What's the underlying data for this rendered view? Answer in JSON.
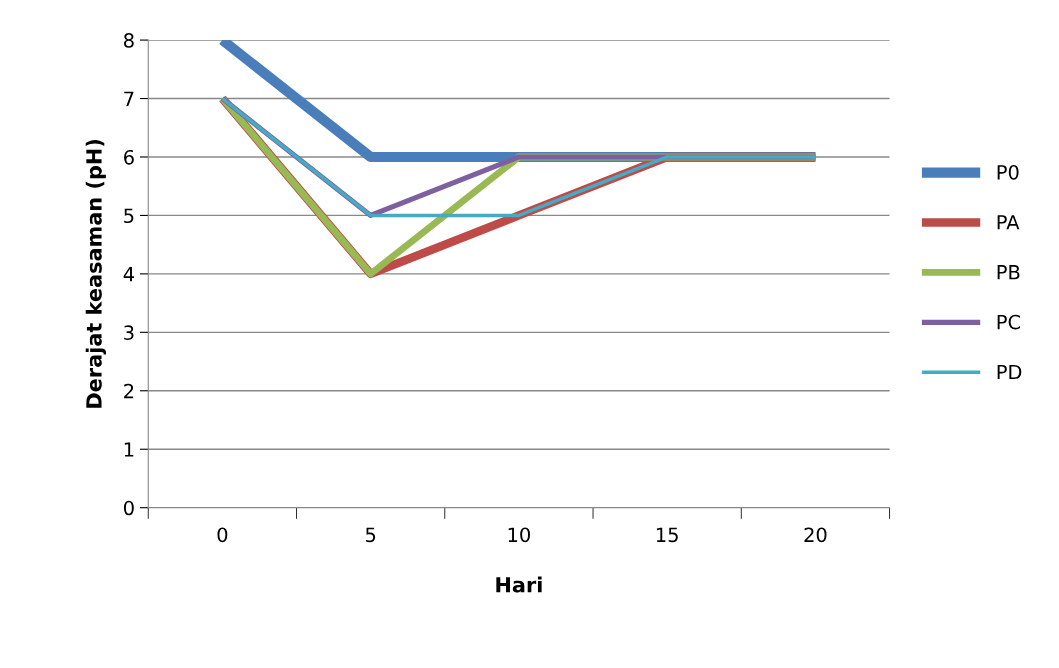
{
  "chart_data": {
    "type": "line",
    "xlabel": "Hari",
    "ylabel": "Derajat keasaman (pH)",
    "categories": [
      "0",
      "5",
      "10",
      "15",
      "20"
    ],
    "series": [
      {
        "name": "P0",
        "color": "#4a7ebb",
        "values": [
          8,
          6,
          6,
          6,
          6
        ]
      },
      {
        "name": "PA",
        "color": "#be4b48",
        "values": [
          7,
          4,
          5,
          6,
          6
        ]
      },
      {
        "name": "PB",
        "color": "#98b954",
        "values": [
          7,
          4,
          6,
          6,
          6
        ]
      },
      {
        "name": "PC",
        "color": "#7d60a0",
        "values": [
          7,
          5,
          6,
          6,
          6
        ]
      },
      {
        "name": "PD",
        "color": "#46aac5",
        "values": [
          7,
          5,
          5,
          6,
          6
        ]
      }
    ],
    "ylim": [
      0,
      8
    ],
    "yticks": [
      0,
      1,
      2,
      3,
      4,
      5,
      6,
      7,
      8
    ],
    "grid": "y",
    "legend": "right",
    "marker": "none",
    "line_style": "solid"
  }
}
